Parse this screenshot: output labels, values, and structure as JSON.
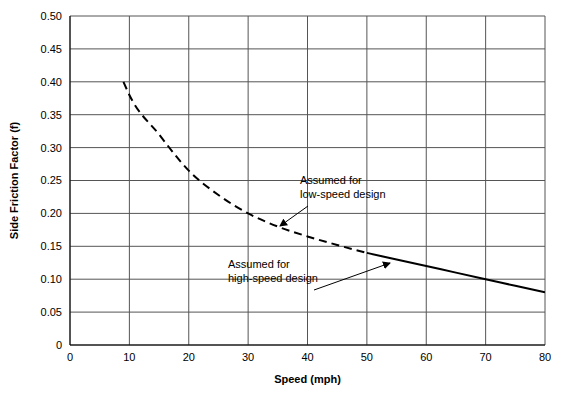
{
  "chart_data": {
    "type": "line",
    "x_label": "Speed (mph)",
    "y_label": "Side Friction Factor (f)",
    "xlim": [
      0,
      80
    ],
    "ylim": [
      0,
      0.5
    ],
    "xticks": [
      0,
      10,
      20,
      30,
      40,
      50,
      60,
      70,
      80
    ],
    "yticks": [
      0,
      0.05,
      {
        "value": 0.1,
        "label": "0.10"
      },
      0.15,
      {
        "value": 0.2,
        "label": "0.20"
      },
      0.25,
      {
        "value": 0.3,
        "label": "0.30"
      },
      0.35,
      {
        "value": 0.4,
        "label": "0.40"
      },
      0.45,
      {
        "value": 0.5,
        "label": "0.50"
      }
    ],
    "grid": true,
    "series": [
      {
        "name": "Assumed for low-speed design",
        "color": "#000000",
        "line_style": "dashed",
        "x": [
          9,
          10,
          15,
          20,
          25,
          30,
          35,
          40,
          45,
          50
        ],
        "values": [
          0.4,
          0.38,
          0.32,
          0.265,
          0.228,
          0.2,
          0.18,
          0.165,
          0.152,
          0.14
        ]
      },
      {
        "name": "Assumed for high-speed design",
        "color": "#000000",
        "line_style": "solid",
        "x": [
          50,
          55,
          60,
          65,
          70,
          75,
          80
        ],
        "values": [
          0.14,
          0.13,
          0.12,
          0.11,
          0.1,
          0.09,
          0.08
        ]
      }
    ]
  }
}
